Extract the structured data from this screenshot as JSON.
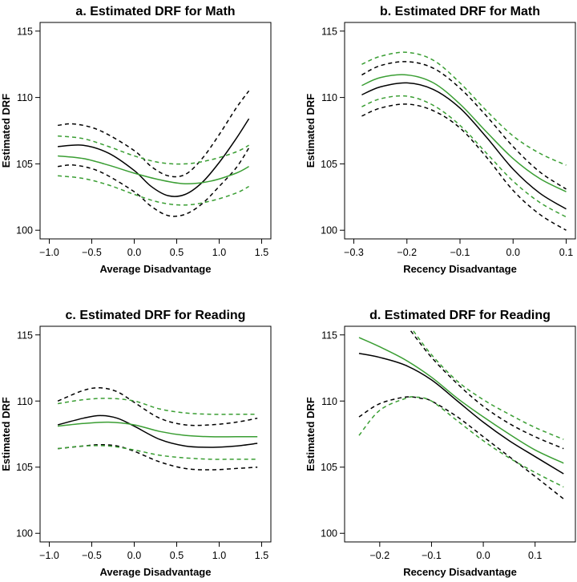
{
  "colors": {
    "black": "#000000",
    "green": "#3a9e33"
  },
  "chart_data": [
    {
      "type": "line",
      "title": "a. Estimated DRF for Math",
      "xlabel": "Average Disadvantage",
      "ylabel": "Estimated DRF",
      "xlim": [
        -1.0,
        1.5
      ],
      "ylim": [
        100,
        115
      ],
      "xticks": [
        -1.0,
        -0.5,
        0.0,
        0.5,
        1.0,
        1.5
      ],
      "xtick_labels": [
        "−1.0",
        "−0.5",
        "0.0",
        "0.5",
        "1.0",
        "1.5"
      ],
      "yticks": [
        100,
        105,
        110,
        115
      ],
      "ytick_labels": [
        "100",
        "105",
        "110",
        "115"
      ],
      "grid": false,
      "series": [
        {
          "color": "black",
          "dash": false,
          "x": [
            -0.9,
            -0.6,
            -0.3,
            0.0,
            0.2,
            0.4,
            0.6,
            0.8,
            1.0,
            1.2,
            1.35
          ],
          "y": [
            106.3,
            106.4,
            105.8,
            104.5,
            103.3,
            102.6,
            102.7,
            103.6,
            105.1,
            106.9,
            108.4
          ]
        },
        {
          "color": "black",
          "dash": true,
          "x": [
            -0.9,
            -0.7,
            -0.4,
            0.0,
            0.2,
            0.4,
            0.6,
            0.8,
            1.0,
            1.2,
            1.35
          ],
          "y": [
            107.9,
            108.0,
            107.5,
            106.0,
            104.8,
            104.1,
            104.2,
            105.4,
            107.2,
            109.2,
            110.5
          ]
        },
        {
          "color": "black",
          "dash": true,
          "x": [
            -0.9,
            -0.7,
            -0.4,
            0.0,
            0.2,
            0.4,
            0.6,
            0.8,
            1.0,
            1.2,
            1.35
          ],
          "y": [
            104.8,
            104.9,
            104.4,
            102.9,
            101.8,
            101.1,
            101.2,
            102.0,
            103.3,
            104.7,
            106.2
          ]
        },
        {
          "color": "green",
          "dash": false,
          "x": [
            -0.9,
            -0.6,
            -0.3,
            0.0,
            0.3,
            0.6,
            0.9,
            1.2,
            1.35
          ],
          "y": [
            105.6,
            105.4,
            104.9,
            104.3,
            103.8,
            103.5,
            103.7,
            104.3,
            104.8
          ]
        },
        {
          "color": "green",
          "dash": true,
          "x": [
            -0.9,
            -0.6,
            -0.3,
            0.0,
            0.3,
            0.6,
            0.9,
            1.2,
            1.35
          ],
          "y": [
            107.1,
            106.9,
            106.3,
            105.6,
            105.1,
            105.0,
            105.3,
            105.9,
            106.4
          ]
        },
        {
          "color": "green",
          "dash": true,
          "x": [
            -0.9,
            -0.6,
            -0.3,
            0.0,
            0.3,
            0.6,
            0.9,
            1.2,
            1.35
          ],
          "y": [
            104.1,
            103.9,
            103.4,
            102.7,
            102.1,
            101.9,
            102.2,
            102.8,
            103.3
          ]
        }
      ]
    },
    {
      "type": "line",
      "title": "b. Estimated DRF for Math",
      "xlabel": "Recency Disadvantage",
      "ylabel": "Estimated DRF",
      "xlim": [
        -0.3,
        0.1
      ],
      "ylim": [
        100,
        115
      ],
      "xticks": [
        -0.3,
        -0.2,
        -0.1,
        0.0,
        0.1
      ],
      "xtick_labels": [
        "−0.3",
        "−0.2",
        "−0.1",
        "0.0",
        "0.1"
      ],
      "yticks": [
        100,
        105,
        110,
        115
      ],
      "ytick_labels": [
        "100",
        "105",
        "110",
        "115"
      ],
      "grid": false,
      "series": [
        {
          "color": "black",
          "dash": false,
          "x": [
            -0.285,
            -0.25,
            -0.2,
            -0.15,
            -0.1,
            -0.05,
            0.0,
            0.05,
            0.1
          ],
          "y": [
            110.2,
            110.8,
            111.1,
            110.6,
            109.2,
            107.0,
            104.6,
            102.8,
            101.6
          ]
        },
        {
          "color": "black",
          "dash": true,
          "x": [
            -0.285,
            -0.25,
            -0.2,
            -0.15,
            -0.1,
            -0.05,
            0.0,
            0.05,
            0.1
          ],
          "y": [
            111.7,
            112.4,
            112.7,
            112.2,
            110.7,
            108.6,
            106.3,
            104.4,
            103.1
          ]
        },
        {
          "color": "black",
          "dash": true,
          "x": [
            -0.285,
            -0.25,
            -0.2,
            -0.15,
            -0.1,
            -0.05,
            0.0,
            0.05,
            0.1
          ],
          "y": [
            108.6,
            109.2,
            109.5,
            109.0,
            107.7,
            105.5,
            103.0,
            101.2,
            100.0
          ]
        },
        {
          "color": "green",
          "dash": false,
          "x": [
            -0.285,
            -0.25,
            -0.2,
            -0.15,
            -0.1,
            -0.05,
            0.0,
            0.05,
            0.1
          ],
          "y": [
            110.9,
            111.5,
            111.7,
            111.1,
            109.5,
            107.4,
            105.4,
            103.9,
            102.9
          ]
        },
        {
          "color": "green",
          "dash": true,
          "x": [
            -0.285,
            -0.25,
            -0.2,
            -0.15,
            -0.1,
            -0.05,
            0.0,
            0.05,
            0.1
          ],
          "y": [
            112.5,
            113.1,
            113.4,
            112.8,
            111.1,
            109.0,
            107.1,
            105.8,
            104.9
          ]
        },
        {
          "color": "green",
          "dash": true,
          "x": [
            -0.285,
            -0.25,
            -0.2,
            -0.15,
            -0.1,
            -0.05,
            0.0,
            0.05,
            0.1
          ],
          "y": [
            109.3,
            109.9,
            110.1,
            109.4,
            107.9,
            105.8,
            103.7,
            102.1,
            101.0
          ]
        }
      ]
    },
    {
      "type": "line",
      "title": "c. Estimated DRF for Reading",
      "xlabel": "Average Disadvantage",
      "ylabel": "Estimated DRF",
      "xlim": [
        -1.0,
        1.5
      ],
      "ylim": [
        100,
        115
      ],
      "xticks": [
        -1.0,
        -0.5,
        0.0,
        0.5,
        1.0,
        1.5
      ],
      "xtick_labels": [
        "−1.0",
        "−0.5",
        "0.0",
        "0.5",
        "1.0",
        "1.5"
      ],
      "yticks": [
        100,
        105,
        110,
        115
      ],
      "ytick_labels": [
        "100",
        "105",
        "110",
        "115"
      ],
      "grid": false,
      "series": [
        {
          "color": "black",
          "dash": false,
          "x": [
            -0.9,
            -0.6,
            -0.4,
            -0.2,
            0.0,
            0.3,
            0.6,
            0.9,
            1.2,
            1.45
          ],
          "y": [
            108.2,
            108.7,
            108.9,
            108.7,
            108.1,
            107.1,
            106.6,
            106.5,
            106.6,
            106.8
          ]
        },
        {
          "color": "black",
          "dash": true,
          "x": [
            -0.9,
            -0.6,
            -0.4,
            -0.2,
            0.0,
            0.3,
            0.6,
            0.9,
            1.2,
            1.45
          ],
          "y": [
            110.0,
            110.8,
            111.0,
            110.7,
            109.9,
            108.7,
            108.2,
            108.2,
            108.4,
            108.7
          ]
        },
        {
          "color": "black",
          "dash": true,
          "x": [
            -0.9,
            -0.6,
            -0.4,
            -0.2,
            0.0,
            0.3,
            0.6,
            0.9,
            1.2,
            1.45
          ],
          "y": [
            106.4,
            106.6,
            106.7,
            106.6,
            106.2,
            105.4,
            104.9,
            104.8,
            104.9,
            105.0
          ]
        },
        {
          "color": "green",
          "dash": false,
          "x": [
            -0.9,
            -0.6,
            -0.3,
            0.0,
            0.3,
            0.6,
            0.9,
            1.2,
            1.45
          ],
          "y": [
            108.1,
            108.3,
            108.4,
            108.2,
            107.7,
            107.4,
            107.3,
            107.3,
            107.3
          ]
        },
        {
          "color": "green",
          "dash": true,
          "x": [
            -0.9,
            -0.6,
            -0.3,
            0.0,
            0.3,
            0.6,
            0.9,
            1.2,
            1.45
          ],
          "y": [
            109.8,
            110.1,
            110.2,
            110.0,
            109.4,
            109.1,
            109.0,
            109.0,
            109.0
          ]
        },
        {
          "color": "green",
          "dash": true,
          "x": [
            -0.9,
            -0.6,
            -0.3,
            0.0,
            0.3,
            0.6,
            0.9,
            1.2,
            1.45
          ],
          "y": [
            106.4,
            106.6,
            106.6,
            106.3,
            105.9,
            105.7,
            105.6,
            105.6,
            105.6
          ]
        }
      ]
    },
    {
      "type": "line",
      "title": "d. Estimated DRF for Reading",
      "xlabel": "Recency Disadvantage",
      "ylabel": "Estimated DRF",
      "xlim": [
        -0.25,
        0.16
      ],
      "ylim": [
        100,
        115
      ],
      "xticks": [
        -0.2,
        -0.1,
        0.0,
        0.1
      ],
      "xtick_labels": [
        "−0.2",
        "−0.1",
        "0.0",
        "0.1"
      ],
      "yticks": [
        100,
        105,
        110,
        115
      ],
      "ytick_labels": [
        "100",
        "105",
        "110",
        "115"
      ],
      "grid": false,
      "series": [
        {
          "color": "black",
          "dash": false,
          "x": [
            -0.24,
            -0.2,
            -0.15,
            -0.1,
            -0.05,
            0.0,
            0.05,
            0.1,
            0.155
          ],
          "y": [
            113.6,
            113.3,
            112.7,
            111.6,
            110.0,
            108.4,
            107.0,
            105.8,
            104.5
          ]
        },
        {
          "color": "black",
          "dash": true,
          "x": [
            -0.14,
            -0.1,
            -0.05,
            0.0,
            0.05,
            0.1,
            0.155
          ],
          "y": [
            115.3,
            113.3,
            111.3,
            109.6,
            108.3,
            107.3,
            106.4
          ]
        },
        {
          "color": "black",
          "dash": true,
          "x": [
            -0.24,
            -0.2,
            -0.15,
            -0.12,
            -0.1,
            -0.05,
            0.0,
            0.05,
            0.1,
            0.155
          ],
          "y": [
            108.8,
            109.8,
            110.3,
            110.2,
            110.0,
            108.8,
            107.3,
            105.8,
            104.3,
            102.6
          ]
        },
        {
          "color": "green",
          "dash": false,
          "x": [
            -0.24,
            -0.2,
            -0.15,
            -0.1,
            -0.05,
            0.0,
            0.05,
            0.1,
            0.155
          ],
          "y": [
            114.8,
            114.1,
            113.1,
            111.8,
            110.2,
            108.8,
            107.5,
            106.3,
            105.3
          ]
        },
        {
          "color": "green",
          "dash": true,
          "x": [
            -0.135,
            -0.1,
            -0.05,
            0.0,
            0.05,
            0.1,
            0.155
          ],
          "y": [
            115.3,
            113.5,
            111.5,
            110.1,
            109.0,
            108.0,
            107.1
          ]
        },
        {
          "color": "green",
          "dash": true,
          "x": [
            -0.24,
            -0.2,
            -0.15,
            -0.13,
            -0.1,
            -0.05,
            0.0,
            0.05,
            0.1,
            0.155
          ],
          "y": [
            107.4,
            109.3,
            110.2,
            110.3,
            110.0,
            108.5,
            107.0,
            105.7,
            104.6,
            103.5
          ]
        }
      ]
    }
  ]
}
